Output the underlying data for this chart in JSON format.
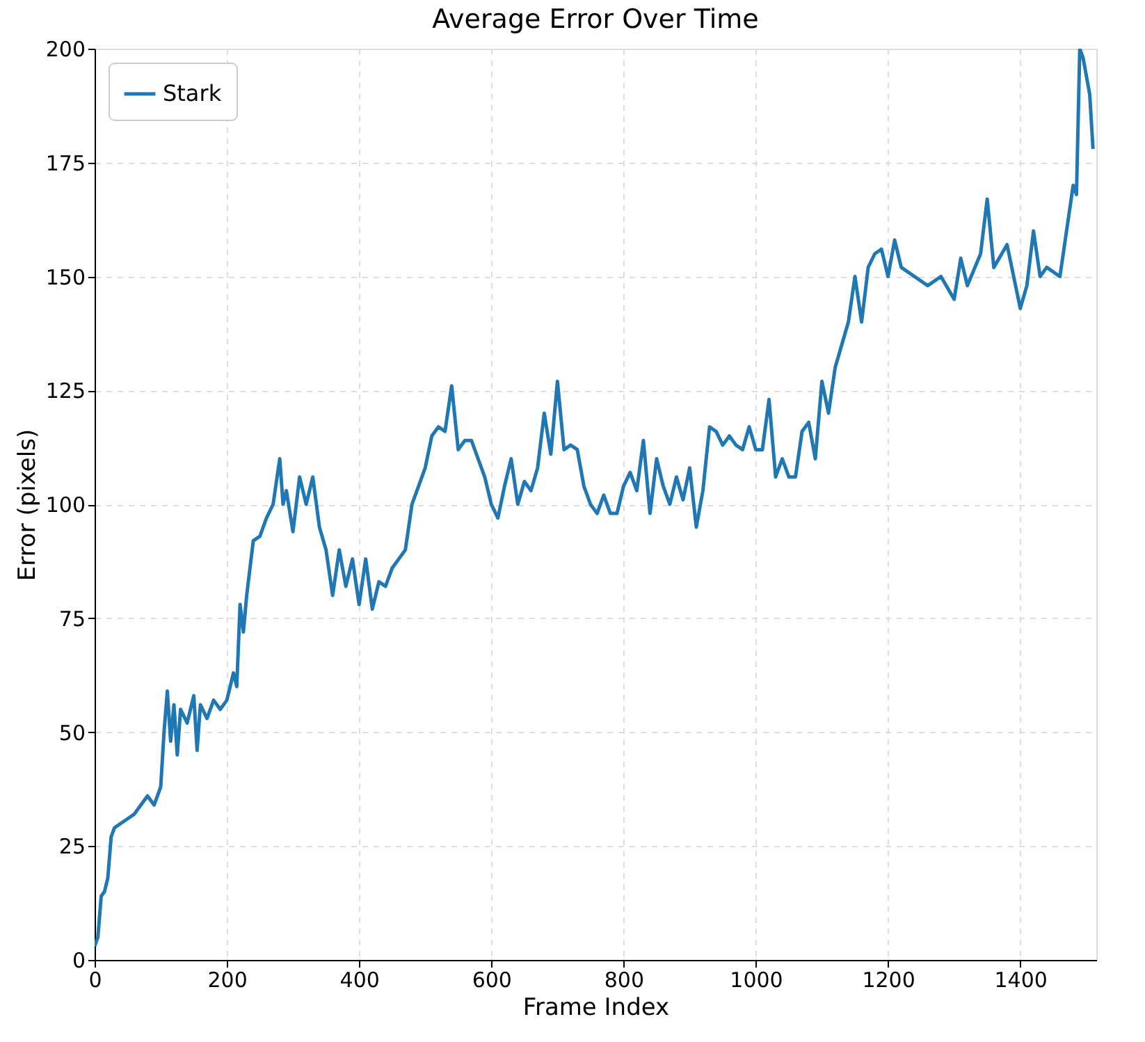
{
  "chart_data": {
    "type": "line",
    "title": "Average Error Over Time",
    "xlabel": "Frame Index",
    "ylabel": "Error (pixels)",
    "x": [
      0,
      5,
      10,
      15,
      20,
      25,
      30,
      40,
      50,
      60,
      70,
      80,
      90,
      100,
      105,
      110,
      115,
      120,
      125,
      130,
      140,
      150,
      155,
      160,
      170,
      180,
      190,
      200,
      210,
      215,
      220,
      225,
      230,
      240,
      250,
      260,
      270,
      280,
      285,
      290,
      300,
      310,
      320,
      330,
      340,
      350,
      360,
      370,
      380,
      390,
      400,
      410,
      420,
      430,
      440,
      450,
      460,
      470,
      480,
      490,
      500,
      510,
      520,
      530,
      540,
      550,
      560,
      570,
      580,
      590,
      600,
      610,
      620,
      630,
      640,
      650,
      660,
      670,
      680,
      690,
      700,
      710,
      720,
      730,
      740,
      750,
      760,
      770,
      780,
      790,
      800,
      810,
      820,
      830,
      840,
      850,
      860,
      870,
      880,
      890,
      900,
      910,
      920,
      930,
      940,
      950,
      960,
      970,
      980,
      990,
      1000,
      1010,
      1020,
      1030,
      1040,
      1050,
      1060,
      1070,
      1080,
      1090,
      1100,
      1110,
      1120,
      1130,
      1140,
      1150,
      1160,
      1170,
      1180,
      1190,
      1200,
      1210,
      1220,
      1240,
      1260,
      1280,
      1300,
      1310,
      1320,
      1340,
      1350,
      1360,
      1380,
      1390,
      1400,
      1410,
      1420,
      1430,
      1440,
      1460,
      1470,
      1475,
      1480,
      1485,
      1490,
      1495,
      1505,
      1510
    ],
    "series": [
      {
        "name": "Stark",
        "color": "#1f77b4",
        "values": [
          3,
          5,
          14,
          15,
          18,
          27,
          29,
          30,
          31,
          32,
          34,
          36,
          34,
          38,
          50,
          59,
          48,
          56,
          45,
          55,
          52,
          58,
          46,
          56,
          53,
          57,
          55,
          57,
          63,
          60,
          78,
          72,
          80,
          92,
          93,
          97,
          100,
          110,
          100,
          103,
          94,
          106,
          100,
          106,
          95,
          90,
          80,
          90,
          82,
          88,
          78,
          88,
          77,
          83,
          82,
          86,
          88,
          90,
          100,
          104,
          108,
          115,
          117,
          116,
          126,
          112,
          114,
          114,
          110,
          106,
          100,
          97,
          104,
          110,
          100,
          105,
          103,
          108,
          120,
          111,
          127,
          112,
          113,
          112,
          104,
          100,
          98,
          102,
          98,
          98,
          104,
          107,
          103,
          114,
          98,
          110,
          104,
          100,
          106,
          101,
          108,
          95,
          103,
          117,
          116,
          113,
          115,
          113,
          112,
          117,
          112,
          112,
          123,
          106,
          110,
          106,
          106,
          116,
          118,
          110,
          127,
          120,
          130,
          135,
          140,
          150,
          140,
          152,
          155,
          156,
          150,
          158,
          152,
          150,
          148,
          150,
          145,
          154,
          148,
          155,
          167,
          152,
          157,
          150,
          143,
          148,
          160,
          150,
          152,
          150,
          160,
          165,
          170,
          168,
          200,
          198,
          190,
          178
        ]
      }
    ],
    "xlim": [
      0,
      1515
    ],
    "ylim": [
      0,
      200
    ],
    "xticks": [
      0,
      200,
      400,
      600,
      800,
      1000,
      1200,
      1400
    ],
    "yticks": [
      0,
      25,
      50,
      75,
      100,
      125,
      150,
      175,
      200
    ],
    "grid": true,
    "legend": "top left",
    "line_style": "solid",
    "marker": "none"
  }
}
